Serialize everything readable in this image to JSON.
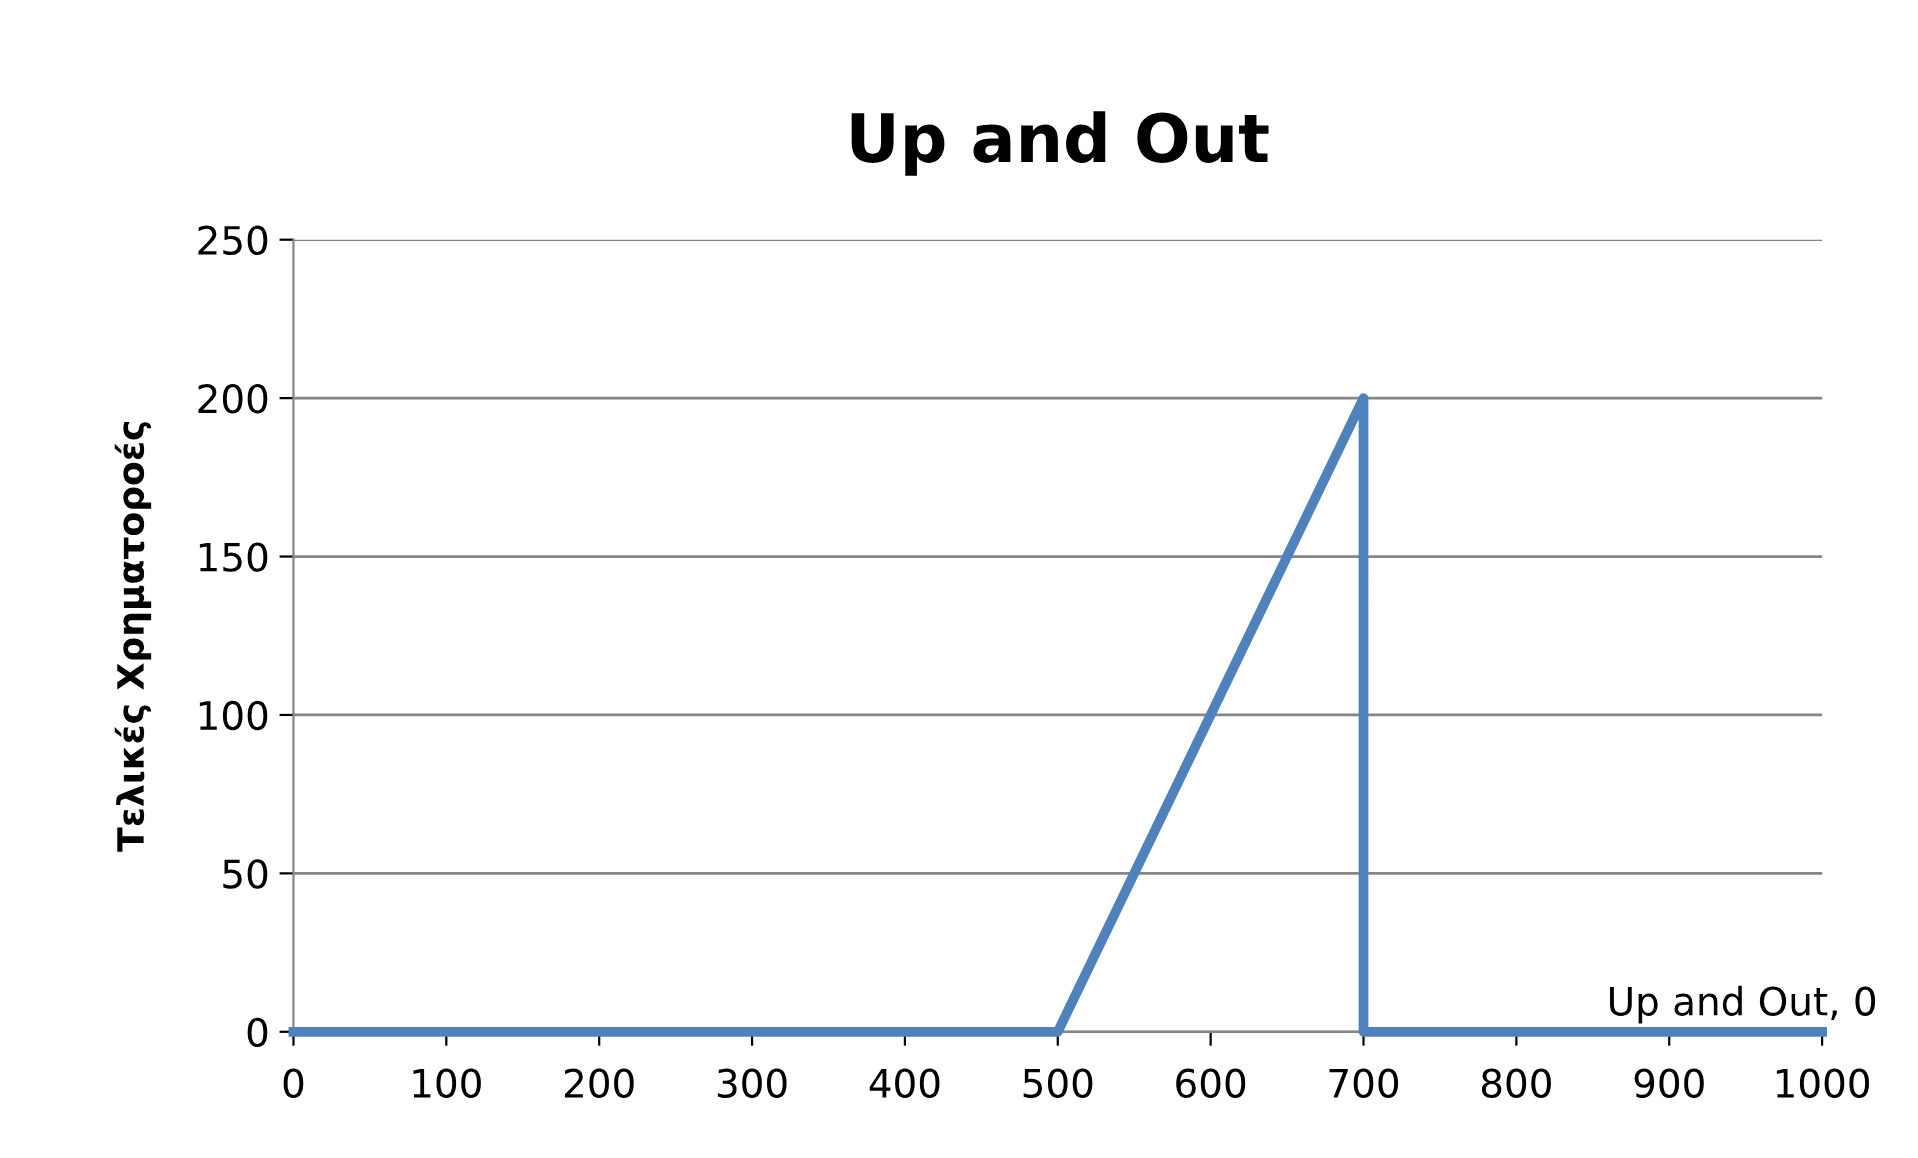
{
  "chart_data": {
    "type": "line",
    "title": "Up and Out",
    "ylabel": "Τελικές Χρηματοροές",
    "series": [
      {
        "color": "#4f81bd",
        "x": [
          0,
          500,
          700,
          700,
          1000
        ],
        "values": [
          0,
          0,
          200,
          0,
          0
        ]
      }
    ],
    "xlim": [
      0,
      1000
    ],
    "xticks": [
      0,
      100,
      200,
      300,
      400,
      500,
      600,
      700,
      800,
      900,
      1000
    ],
    "ylim": [
      0,
      250
    ],
    "yticks": [
      0,
      50,
      100,
      150,
      200,
      250
    ],
    "grid": "y",
    "marker": "none",
    "line_style": "solid",
    "annotations": [
      {
        "text": "Up and Out, 0",
        "x": 1000,
        "y": 0
      }
    ]
  }
}
